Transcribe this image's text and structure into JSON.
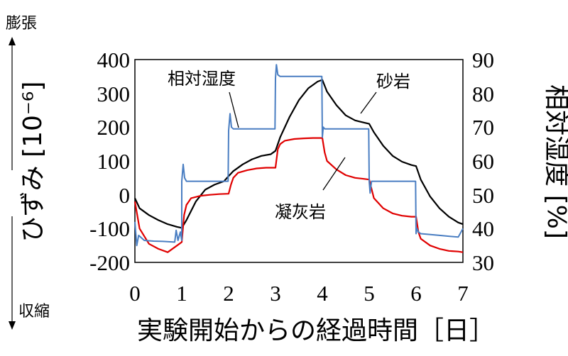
{
  "chart_data": {
    "type": "line",
    "xlabel": "実験開始からの経過時間［日］",
    "ylabel_left": "ひずみ [10⁻⁶]",
    "ylabel_right": "相対湿度 [%]",
    "expansion_label": "膨張",
    "contraction_label": "収縮",
    "xlim": [
      0,
      7
    ],
    "ylim_left": [
      -200,
      400
    ],
    "ylim_right": [
      30,
      90
    ],
    "x_ticks": [
      "0",
      "1",
      "2",
      "3",
      "4",
      "5",
      "6",
      "7"
    ],
    "y_ticks_left": [
      "400",
      "300",
      "200",
      "100",
      "0",
      "-100",
      "-200"
    ],
    "y_ticks_right": [
      "90",
      "80",
      "70",
      "60",
      "50",
      "40",
      "30"
    ],
    "grid": false,
    "annotations": [
      {
        "text": "相対湿度"
      },
      {
        "text": "砂岩"
      },
      {
        "text": "凝灰岩"
      }
    ],
    "series": [
      {
        "name": "砂岩",
        "axis": "left",
        "color": "#000000",
        "x": [
          0,
          0.1,
          0.3,
          0.5,
          0.7,
          0.9,
          1.0,
          1.1,
          1.3,
          1.5,
          1.7,
          1.9,
          2.0,
          2.1,
          2.3,
          2.5,
          2.7,
          2.9,
          3.0,
          3.1,
          3.3,
          3.5,
          3.7,
          3.9,
          4.0,
          4.1,
          4.3,
          4.5,
          4.7,
          4.9,
          5.0,
          5.1,
          5.3,
          5.5,
          5.7,
          5.9,
          6.0,
          6.1,
          6.3,
          6.5,
          6.7,
          6.9,
          7.0
        ],
        "y": [
          -10,
          -40,
          -60,
          -75,
          -87,
          -95,
          -98,
          -75,
          -20,
          15,
          30,
          40,
          55,
          70,
          90,
          105,
          115,
          120,
          130,
          170,
          230,
          280,
          315,
          335,
          340,
          305,
          265,
          235,
          220,
          213,
          210,
          185,
          145,
          115,
          98,
          88,
          85,
          45,
          -5,
          -40,
          -65,
          -82,
          -87
        ]
      },
      {
        "name": "凝灰岩",
        "axis": "left",
        "color": "#e00000",
        "x": [
          0,
          0.1,
          0.3,
          0.5,
          0.7,
          0.9,
          1.0,
          1.05,
          1.1,
          1.2,
          1.4,
          1.6,
          1.8,
          2.0,
          2.05,
          2.1,
          2.2,
          2.4,
          2.6,
          2.8,
          3.0,
          3.05,
          3.1,
          3.2,
          3.4,
          3.6,
          3.8,
          4.0,
          4.05,
          4.1,
          4.3,
          4.5,
          4.7,
          4.9,
          5.0,
          5.1,
          5.3,
          5.5,
          5.7,
          5.9,
          6.0,
          6.05,
          6.1,
          6.3,
          6.5,
          6.7,
          6.9,
          7.0
        ],
        "y": [
          -20,
          -100,
          -145,
          -160,
          -170,
          -150,
          -140,
          -60,
          -30,
          -10,
          -3,
          0,
          2,
          3,
          30,
          50,
          65,
          73,
          78,
          80,
          80,
          135,
          150,
          160,
          165,
          167,
          168,
          168,
          125,
          100,
          75,
          58,
          50,
          47,
          45,
          -10,
          -40,
          -55,
          -62,
          -65,
          -65,
          -110,
          -130,
          -150,
          -160,
          -166,
          -168,
          -170
        ]
      },
      {
        "name": "相対湿度",
        "axis": "right",
        "color": "#4a7ec2",
        "x": [
          0,
          0.04,
          0.08,
          0.2,
          0.4,
          0.6,
          0.85,
          0.88,
          0.92,
          0.97,
          1.0,
          1.0,
          1.03,
          1.06,
          1.1,
          1.5,
          1.99,
          2.0,
          2.03,
          2.06,
          2.1,
          2.5,
          2.99,
          3.0,
          3.02,
          3.05,
          3.1,
          3.5,
          3.99,
          4.0,
          4.02,
          4.05,
          4.1,
          4.5,
          4.99,
          5.0,
          5.02,
          5.05,
          5.1,
          5.5,
          5.99,
          6.0,
          6.02,
          6.05,
          6.1,
          6.5,
          6.9,
          7.0
        ],
        "y": [
          42,
          35,
          38,
          36.5,
          36.3,
          36.2,
          36.0,
          39.5,
          36.5,
          39.0,
          36.5,
          54.0,
          59.0,
          55.0,
          54.0,
          54.0,
          54.0,
          69.0,
          74.0,
          70.0,
          69.5,
          69.5,
          69.5,
          84.5,
          88.5,
          85.5,
          85.0,
          85.0,
          85.0,
          67.0,
          70.0,
          69.5,
          69.5,
          69.5,
          69.5,
          54.0,
          50.5,
          54.0,
          54.0,
          54.0,
          54.0,
          38.5,
          40.0,
          39.0,
          38.5,
          38.0,
          37.5,
          40.0
        ]
      }
    ]
  }
}
